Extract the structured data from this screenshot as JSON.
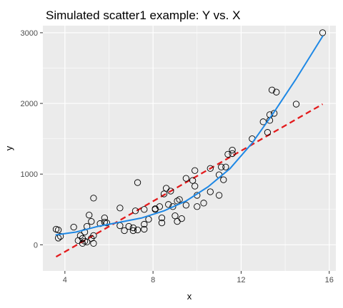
{
  "chart_data": {
    "type": "scatter",
    "title": "Simulated scatter1 example: Y vs. X",
    "xlabel": "x",
    "ylabel": "y",
    "xlim": [
      3.0,
      16.3
    ],
    "ylim": [
      -370,
      3100
    ],
    "x_ticks": [
      4,
      8,
      12,
      16
    ],
    "x_minor_ticks": [
      6,
      10,
      14
    ],
    "y_ticks": [
      0,
      1000,
      2000,
      3000
    ],
    "y_minor_ticks": [
      500,
      1500,
      2500
    ],
    "grid": true,
    "legend": "none",
    "colors": {
      "panel": "#ebebeb",
      "grid": "#ffffff",
      "points": "#000000",
      "smooth_line": "#1e88e5",
      "linear_fit": "#e31a1c"
    },
    "points": [
      {
        "x": 3.6,
        "y": 220
      },
      {
        "x": 3.7,
        "y": 210
      },
      {
        "x": 3.7,
        "y": 95
      },
      {
        "x": 3.8,
        "y": 120
      },
      {
        "x": 4.4,
        "y": 250
      },
      {
        "x": 4.6,
        "y": 60
      },
      {
        "x": 4.7,
        "y": 130
      },
      {
        "x": 4.8,
        "y": 90
      },
      {
        "x": 4.8,
        "y": 20
      },
      {
        "x": 4.9,
        "y": 180
      },
      {
        "x": 4.9,
        "y": 50
      },
      {
        "x": 5.0,
        "y": 260
      },
      {
        "x": 5.0,
        "y": 40
      },
      {
        "x": 5.1,
        "y": 420
      },
      {
        "x": 5.2,
        "y": 90
      },
      {
        "x": 5.2,
        "y": 330
      },
      {
        "x": 5.3,
        "y": 660
      },
      {
        "x": 5.3,
        "y": 130
      },
      {
        "x": 5.3,
        "y": 20
      },
      {
        "x": 5.6,
        "y": 300
      },
      {
        "x": 5.8,
        "y": 380
      },
      {
        "x": 5.8,
        "y": 320
      },
      {
        "x": 5.9,
        "y": 310
      },
      {
        "x": 6.5,
        "y": 520
      },
      {
        "x": 6.5,
        "y": 270
      },
      {
        "x": 6.7,
        "y": 200
      },
      {
        "x": 6.9,
        "y": 260
      },
      {
        "x": 7.1,
        "y": 240
      },
      {
        "x": 7.1,
        "y": 200
      },
      {
        "x": 7.2,
        "y": 480
      },
      {
        "x": 7.3,
        "y": 880
      },
      {
        "x": 7.3,
        "y": 210
      },
      {
        "x": 7.6,
        "y": 500
      },
      {
        "x": 7.6,
        "y": 290
      },
      {
        "x": 7.6,
        "y": 220
      },
      {
        "x": 7.8,
        "y": 360
      },
      {
        "x": 8.1,
        "y": 510
      },
      {
        "x": 8.1,
        "y": 500
      },
      {
        "x": 8.3,
        "y": 540
      },
      {
        "x": 8.4,
        "y": 380
      },
      {
        "x": 8.4,
        "y": 310
      },
      {
        "x": 8.5,
        "y": 720
      },
      {
        "x": 8.6,
        "y": 800
      },
      {
        "x": 8.7,
        "y": 570
      },
      {
        "x": 8.8,
        "y": 760
      },
      {
        "x": 8.9,
        "y": 540
      },
      {
        "x": 9.0,
        "y": 410
      },
      {
        "x": 9.1,
        "y": 330
      },
      {
        "x": 9.1,
        "y": 620
      },
      {
        "x": 9.2,
        "y": 640
      },
      {
        "x": 9.3,
        "y": 370
      },
      {
        "x": 9.5,
        "y": 560
      },
      {
        "x": 9.5,
        "y": 940
      },
      {
        "x": 9.8,
        "y": 910
      },
      {
        "x": 9.9,
        "y": 1050
      },
      {
        "x": 9.9,
        "y": 830
      },
      {
        "x": 10.0,
        "y": 700
      },
      {
        "x": 10.0,
        "y": 540
      },
      {
        "x": 10.3,
        "y": 590
      },
      {
        "x": 10.6,
        "y": 1080
      },
      {
        "x": 10.6,
        "y": 750
      },
      {
        "x": 11.0,
        "y": 700
      },
      {
        "x": 11.0,
        "y": 990
      },
      {
        "x": 11.1,
        "y": 1100
      },
      {
        "x": 11.2,
        "y": 920
      },
      {
        "x": 11.3,
        "y": 1100
      },
      {
        "x": 11.4,
        "y": 1280
      },
      {
        "x": 11.6,
        "y": 1340
      },
      {
        "x": 11.6,
        "y": 1290
      },
      {
        "x": 12.5,
        "y": 1500
      },
      {
        "x": 13.0,
        "y": 1740
      },
      {
        "x": 13.2,
        "y": 1590
      },
      {
        "x": 13.3,
        "y": 1760
      },
      {
        "x": 13.3,
        "y": 1840
      },
      {
        "x": 13.5,
        "y": 1860
      },
      {
        "x": 13.4,
        "y": 2190
      },
      {
        "x": 13.6,
        "y": 2160
      },
      {
        "x": 14.5,
        "y": 1990
      },
      {
        "x": 15.7,
        "y": 3000
      }
    ],
    "smooth_line": {
      "x": [
        3.6,
        4.5,
        5.5,
        6.5,
        7.5,
        8.5,
        9.5,
        10.5,
        11.5,
        12.5,
        13.5,
        14.5,
        15.0,
        15.7
      ],
      "y": [
        140,
        180,
        260,
        320,
        380,
        480,
        620,
        820,
        1080,
        1440,
        1880,
        2350,
        2600,
        2950
      ]
    },
    "linear_fit": {
      "x": [
        3.6,
        15.7
      ],
      "y": [
        -170,
        1990
      ]
    }
  }
}
